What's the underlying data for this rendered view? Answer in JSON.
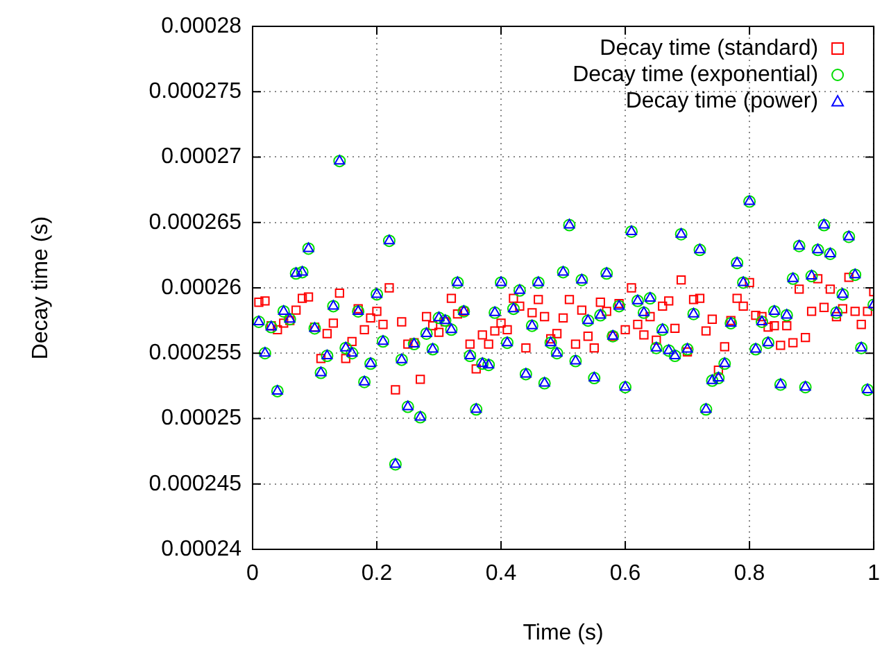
{
  "chart_data": {
    "type": "scatter",
    "xlabel": "Time (s)",
    "ylabel": "Decay time (s)",
    "x": [
      0.01,
      0.02,
      0.03,
      0.04,
      0.05,
      0.06,
      0.07,
      0.08,
      0.09,
      0.1,
      0.11,
      0.12,
      0.13,
      0.14,
      0.15,
      0.16,
      0.17,
      0.18,
      0.19,
      0.2,
      0.21,
      0.22,
      0.23,
      0.24,
      0.25,
      0.26,
      0.27,
      0.28,
      0.29,
      0.3,
      0.31,
      0.32,
      0.33,
      0.34,
      0.35,
      0.36,
      0.37,
      0.38,
      0.39,
      0.4,
      0.41,
      0.42,
      0.43,
      0.44,
      0.45,
      0.46,
      0.47,
      0.48,
      0.49,
      0.5,
      0.51,
      0.52,
      0.53,
      0.54,
      0.55,
      0.56,
      0.57,
      0.58,
      0.59,
      0.6,
      0.61,
      0.62,
      0.63,
      0.64,
      0.65,
      0.66,
      0.67,
      0.68,
      0.69,
      0.7,
      0.71,
      0.72,
      0.73,
      0.74,
      0.75,
      0.76,
      0.77,
      0.78,
      0.79,
      0.8,
      0.81,
      0.82,
      0.83,
      0.84,
      0.85,
      0.86,
      0.87,
      0.88,
      0.89,
      0.9,
      0.91,
      0.92,
      0.93,
      0.94,
      0.95,
      0.96,
      0.97,
      0.98,
      0.99,
      1
    ],
    "series": [
      {
        "name": "Decay time (standard)",
        "color": "#ff0000",
        "marker": "square",
        "values": [
          0.0002589,
          0.000259,
          0.0002571,
          0.0002568,
          0.0002573,
          0.0002575,
          0.0002583,
          0.0002592,
          0.0002593,
          0.000257,
          0.0002546,
          0.0002565,
          0.0002573,
          0.0002596,
          0.0002546,
          0.0002559,
          0.0002584,
          0.0002568,
          0.0002577,
          0.0002582,
          0.0002572,
          0.00026,
          0.0002522,
          0.0002574,
          0.0002557,
          0.0002558,
          0.000253,
          0.0002578,
          0.0002571,
          0.0002566,
          0.0002574,
          0.0002592,
          0.000258,
          0.0002582,
          0.0002557,
          0.0002538,
          0.0002564,
          0.0002557,
          0.0002567,
          0.0002573,
          0.0002568,
          0.0002592,
          0.0002586,
          0.0002554,
          0.0002581,
          0.0002591,
          0.0002578,
          0.0002561,
          0.0002565,
          0.0002577,
          0.0002591,
          0.0002557,
          0.0002583,
          0.0002563,
          0.0002554,
          0.0002589,
          0.0002582,
          0.0002563,
          0.0002588,
          0.0002568,
          0.00026,
          0.0002572,
          0.0002564,
          0.0002578,
          0.000256,
          0.0002586,
          0.000259,
          0.0002569,
          0.0002606,
          0.0002551,
          0.0002591,
          0.0002592,
          0.0002567,
          0.0002576,
          0.0002537,
          0.0002555,
          0.0002575,
          0.0002592,
          0.0002586,
          0.0002604,
          0.0002579,
          0.0002578,
          0.000257,
          0.0002571,
          0.0002556,
          0.0002571,
          0.0002558,
          0.0002599,
          0.0002562,
          0.0002582,
          0.0002607,
          0.0002585,
          0.0002599,
          0.0002578,
          0.0002584,
          0.0002608,
          0.0002582,
          0.0002572,
          0.0002582,
          0.0002597
        ]
      },
      {
        "name": "Decay time (exponential)",
        "color": "#00dd00",
        "marker": "circle",
        "values": [
          0.0002574,
          0.000255,
          0.000257,
          0.0002521,
          0.0002582,
          0.0002576,
          0.0002611,
          0.0002612,
          0.000263,
          0.0002569,
          0.0002535,
          0.0002548,
          0.0002586,
          0.0002697,
          0.0002554,
          0.000255,
          0.0002582,
          0.0002528,
          0.0002542,
          0.0002595,
          0.0002559,
          0.0002636,
          0.0002465,
          0.0002545,
          0.0002509,
          0.0002557,
          0.0002501,
          0.0002565,
          0.0002553,
          0.0002577,
          0.0002575,
          0.0002568,
          0.0002604,
          0.0002582,
          0.0002548,
          0.0002507,
          0.0002542,
          0.0002541,
          0.0002581,
          0.0002604,
          0.0002558,
          0.0002584,
          0.0002598,
          0.0002534,
          0.0002571,
          0.0002604,
          0.0002527,
          0.0002558,
          0.000255,
          0.0002612,
          0.0002648,
          0.0002544,
          0.0002606,
          0.0002575,
          0.0002531,
          0.0002579,
          0.0002611,
          0.0002563,
          0.0002586,
          0.0002524,
          0.0002643,
          0.000259,
          0.0002581,
          0.0002592,
          0.0002554,
          0.0002568,
          0.0002552,
          0.0002548,
          0.0002641,
          0.0002553,
          0.000258,
          0.0002629,
          0.0002507,
          0.0002529,
          0.0002531,
          0.0002542,
          0.0002573,
          0.0002619,
          0.0002604,
          0.0002666,
          0.0002553,
          0.0002574,
          0.0002558,
          0.0002582,
          0.0002526,
          0.0002579,
          0.0002607,
          0.0002632,
          0.0002524,
          0.0002609,
          0.0002629,
          0.0002648,
          0.0002626,
          0.0002581,
          0.0002595,
          0.0002639,
          0.000261,
          0.0002554,
          0.0002522,
          0.0002587
        ]
      },
      {
        "name": "Decay time (power)",
        "color": "#0000ff",
        "marker": "triangle",
        "values": [
          0.0002574,
          0.000255,
          0.000257,
          0.0002521,
          0.0002582,
          0.0002576,
          0.0002611,
          0.0002612,
          0.000263,
          0.0002569,
          0.0002535,
          0.0002548,
          0.0002586,
          0.0002697,
          0.0002554,
          0.000255,
          0.0002582,
          0.0002528,
          0.0002542,
          0.0002595,
          0.0002559,
          0.0002636,
          0.0002465,
          0.0002545,
          0.0002509,
          0.0002557,
          0.0002501,
          0.0002565,
          0.0002553,
          0.0002577,
          0.0002575,
          0.0002568,
          0.0002604,
          0.0002582,
          0.0002548,
          0.0002507,
          0.0002542,
          0.0002541,
          0.0002581,
          0.0002604,
          0.0002558,
          0.0002584,
          0.0002598,
          0.0002534,
          0.0002571,
          0.0002604,
          0.0002527,
          0.0002558,
          0.000255,
          0.0002612,
          0.0002648,
          0.0002544,
          0.0002606,
          0.0002575,
          0.0002531,
          0.0002579,
          0.0002611,
          0.0002563,
          0.0002586,
          0.0002524,
          0.0002643,
          0.000259,
          0.0002581,
          0.0002592,
          0.0002554,
          0.0002568,
          0.0002552,
          0.0002548,
          0.0002641,
          0.0002553,
          0.000258,
          0.0002629,
          0.0002507,
          0.0002529,
          0.0002531,
          0.0002542,
          0.0002573,
          0.0002619,
          0.0002604,
          0.0002666,
          0.0002553,
          0.0002574,
          0.0002558,
          0.0002582,
          0.0002526,
          0.0002579,
          0.0002607,
          0.0002632,
          0.0002524,
          0.0002609,
          0.0002629,
          0.0002648,
          0.0002626,
          0.0002581,
          0.0002595,
          0.0002639,
          0.000261,
          0.0002554,
          0.0002522,
          0.0002587
        ]
      }
    ],
    "xlim": [
      0,
      1
    ],
    "xticks": [
      0,
      0.2,
      0.4,
      0.6,
      0.8,
      1
    ],
    "ylim": [
      0.00024,
      0.00028
    ],
    "yticks": [
      0.00024,
      0.000245,
      0.00025,
      0.000255,
      0.00026,
      0.000265,
      0.00027,
      0.000275,
      0.00028
    ],
    "grid": true,
    "legend": "top right"
  }
}
